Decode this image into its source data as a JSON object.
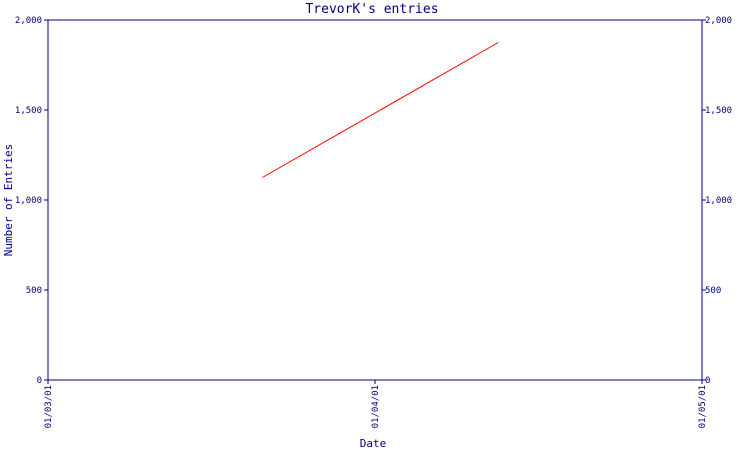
{
  "chart_data": {
    "type": "line",
    "title": "TrevorK's entries",
    "xlabel": "Date",
    "ylabel": "Number of Entries",
    "x_ticks": [
      "01/03/01",
      "01/04/01",
      "01/05/01"
    ],
    "y_ticks": [
      "0",
      "500",
      "1,000",
      "1,500",
      "2,000"
    ],
    "ylim": [
      0,
      2000
    ],
    "xlim": [
      "2001-03-01",
      "2001-05-01"
    ],
    "series": [
      {
        "x": [
          "2001-03-21",
          "2001-04-12"
        ],
        "values": [
          1125,
          1875
        ]
      }
    ],
    "grid": false,
    "colors": {
      "axis": "#000080",
      "text": "#000080",
      "line": "#ff0000"
    }
  }
}
